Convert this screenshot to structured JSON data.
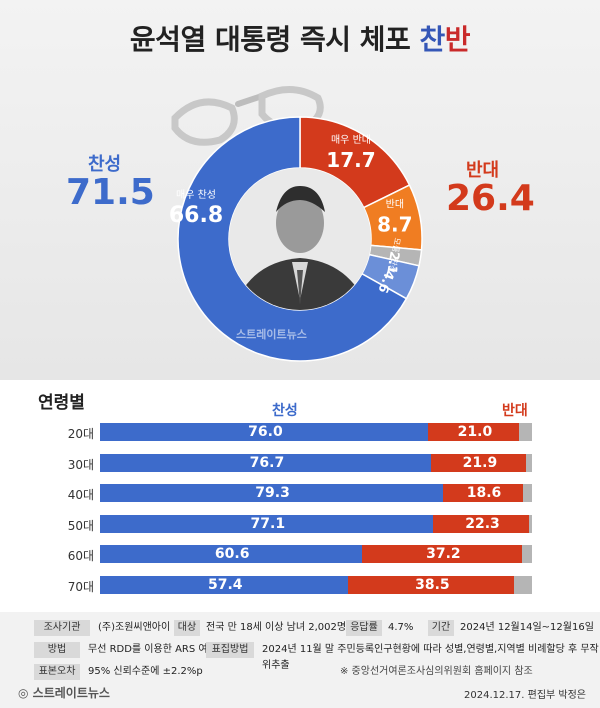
{
  "title": {
    "main": "윤석열 대통령 즉시 체포",
    "highlight_blue": "찬",
    "highlight_red": "반"
  },
  "totals": {
    "approve": {
      "label": "찬성",
      "value": "71.5"
    },
    "oppose": {
      "label": "반대",
      "value": "26.4"
    }
  },
  "watermark": "스트레이트뉴스",
  "colors": {
    "approve_strong": "#3d6bcb",
    "approve_weak": "#6b8fd8",
    "oppose_strong": "#d33a1c",
    "oppose_weak": "#f07d22",
    "other": "#b5b5b5"
  },
  "chart_data": [
    {
      "type": "pie",
      "title": "윤석열 대통령 즉시 체포 찬반",
      "slices": [
        {
          "label": "매우 찬성",
          "value": 66.8,
          "color": "#3d6bcb"
        },
        {
          "label": "매우 반대",
          "value": 17.7,
          "color": "#d33a1c"
        },
        {
          "label": "반대",
          "value": 8.7,
          "color": "#f07d22"
        },
        {
          "label": "모름",
          "value": 2.1,
          "color": "#b5b5b5"
        },
        {
          "label": "찬성",
          "value": 4.6,
          "color": "#6b8fd8"
        }
      ]
    },
    {
      "type": "bar",
      "title": "연령별",
      "categories": [
        "20대",
        "30대",
        "40대",
        "50대",
        "60대",
        "70대"
      ],
      "series": [
        {
          "name": "찬성",
          "values": [
            76.0,
            76.7,
            79.3,
            77.1,
            60.6,
            57.4
          ],
          "color": "#3d6bcb"
        },
        {
          "name": "반대",
          "values": [
            21.0,
            21.9,
            18.6,
            22.3,
            37.2,
            38.5
          ],
          "color": "#d33a1c"
        }
      ],
      "xlim": [
        0,
        100
      ]
    }
  ],
  "age_section": {
    "title": "연령별",
    "legend_approve": "찬성",
    "legend_oppose": "반대"
  },
  "footer": {
    "agency": {
      "key": "조사기관",
      "value": "(주)조원씨앤아이"
    },
    "target": {
      "key": "대상",
      "value": "전국 만 18세 이상 남녀 2,002명"
    },
    "response_rate": {
      "key": "응답률",
      "value": "4.7%"
    },
    "period": {
      "key": "기간",
      "value": "2024년 12월14일~12월16일"
    },
    "method": {
      "key": "방법",
      "value": "무선 RDD를 이용한 ARS 여론조사"
    },
    "sampling": {
      "key": "표집방법",
      "value": "2024년 11월 말 주민등록인구현황에 따라 성별,연령별,지역별 비례할당 후 무작위추출"
    },
    "margin": {
      "key": "표본오차",
      "value": "95% 신뢰수준에 ±2.2%p"
    },
    "note": "※ 중앙선거여론조사심의위원회 홈페이지 참조"
  },
  "brand": "스트레이트뉴스",
  "credit": "2024.12.17. 편집부 박정은"
}
